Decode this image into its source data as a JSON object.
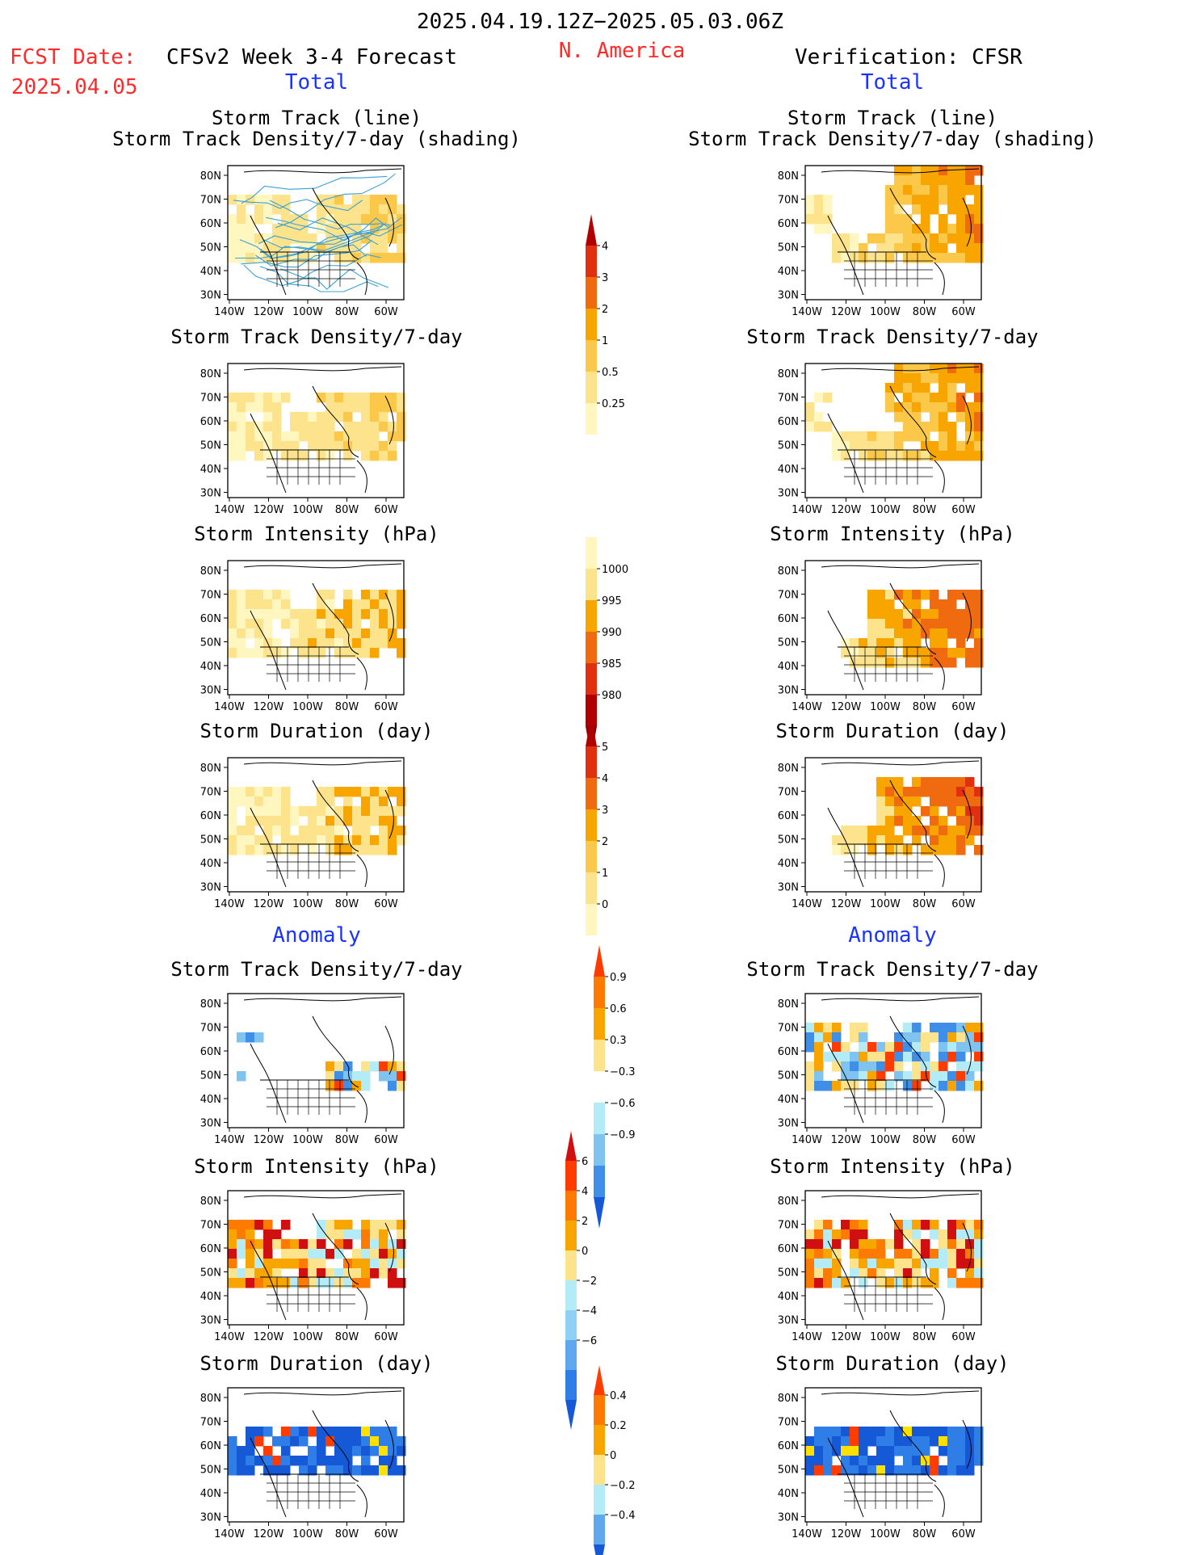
{
  "header": {
    "date_range": "2025.04.19.12Z−2025.05.03.06Z",
    "fcst_label": "FCST Date:",
    "fcst_date": "2025.04.05",
    "model_title": "CFSv2 Week 3-4 Forecast",
    "region": "N. America",
    "verification": "Verification: CFSR"
  },
  "sections": {
    "total": "Total",
    "anomaly": "Anomaly"
  },
  "panel_titles": {
    "track_line": "Storm Track (line)",
    "track_shading": "Storm Track Density/7-day (shading)",
    "density": "Storm Track Density/7-day",
    "intensity": "Storm Intensity (hPa)",
    "duration": "Storm Duration (day)"
  },
  "axes": {
    "lat_labels": [
      "80N",
      "70N",
      "60N",
      "50N",
      "40N",
      "30N"
    ],
    "lon_labels": [
      "140W",
      "120W",
      "100W",
      "80W",
      "60W"
    ]
  },
  "colorbars": {
    "density": {
      "labels": [
        "4",
        "3",
        "2",
        "1",
        "0.5",
        "0.25"
      ],
      "colors": [
        "#b00000",
        "#e03010",
        "#f06a10",
        "#f9a500",
        "#fbc84a",
        "#fde38c",
        "#fff6c0"
      ]
    },
    "intensity": {
      "labels": [
        "1000",
        "995",
        "990",
        "985",
        "980"
      ],
      "colors": [
        "#fff6c0",
        "#fde38c",
        "#f9a500",
        "#f06a10",
        "#e03010",
        "#b00000",
        "#8b0000"
      ]
    },
    "duration": {
      "labels": [
        "5",
        "4",
        "3",
        "2",
        "1",
        "0"
      ],
      "colors": [
        "#b00000",
        "#e03010",
        "#f06a10",
        "#f9a500",
        "#fbc84a",
        "#fde38c",
        "#fff6c0"
      ]
    },
    "density_anom": {
      "labels": [
        "0.9",
        "0.6",
        "0.3",
        "−0.3",
        "−0.6",
        "−0.9"
      ],
      "colors": [
        "#ff3c00",
        "#ff7a00",
        "#f9a500",
        "#fde38c",
        "#ffffff",
        "#b3ecf7",
        "#7fc4f0",
        "#3f8ee8",
        "#1559d6"
      ]
    },
    "intensity_anom": {
      "labels": [
        "6",
        "4",
        "2",
        "0",
        "−2",
        "−4",
        "−6"
      ],
      "colors": [
        "#d01010",
        "#ff3c00",
        "#ff7a00",
        "#f9a500",
        "#fde38c",
        "#b3ecf7",
        "#8fd0f5",
        "#5fa8ee",
        "#2f7de6",
        "#1559d6"
      ]
    },
    "duration_anom": {
      "labels": [
        "0.4",
        "0.2",
        "0",
        "−0.2",
        "−0.4"
      ],
      "colors": [
        "#ff3c00",
        "#ff7a00",
        "#f9a500",
        "#fde38c",
        "#b3ecf7",
        "#5fa8ee",
        "#1559d6"
      ]
    }
  }
}
